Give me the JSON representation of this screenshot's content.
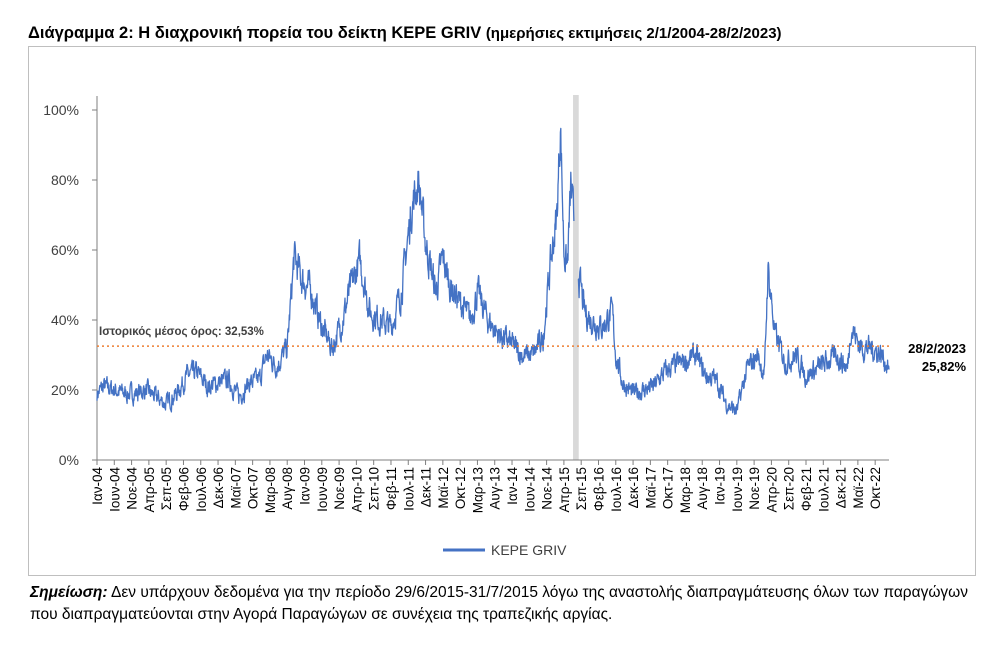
{
  "header": {
    "title": "Διάγραμμα 2: Η διαχρονική πορεία του δείκτη KEPE GRIV",
    "subtitle": "(ημερήσιες εκτιμήσεις 2/1/2004-28/2/2023)"
  },
  "note": {
    "lead": "Σημείωση:",
    "text": " Δεν υπάρχουν δεδομένα για την περίοδο 29/6/2015-31/7/2015 λόγω της αναστολής διαπραγμάτευσης όλων των παραγώγων που διαπραγματεύονται στην Αγορά Παραγώγων σε συνέχεια της τραπεζικής αργίας."
  },
  "colors": {
    "series": "#4472c4",
    "mean_line": "#ed7d31",
    "gap_band": "#d9d9d9"
  },
  "chart_data": {
    "type": "line",
    "title": "",
    "xlabel": "",
    "ylabel": "",
    "ylim": [
      0,
      1.0
    ],
    "yticks": [
      0,
      0.2,
      0.4,
      0.6,
      0.8,
      1.0
    ],
    "ytick_labels": [
      "0%",
      "20%",
      "40%",
      "60%",
      "80%",
      "100%"
    ],
    "grid": false,
    "legend_position": "bottom",
    "x_start": "2004-01",
    "x_end": "2023-02",
    "x_tick_labels": [
      "Ιαν-04",
      "Ιουν-04",
      "Νοε-04",
      "Απρ-05",
      "Σεπ-05",
      "Φεβ-06",
      "Ιουλ-06",
      "Δεκ-06",
      "Μαϊ-07",
      "Οκτ-07",
      "Μαρ-08",
      "Αυγ-08",
      "Ιαν-09",
      "Ιουν-09",
      "Νοε-09",
      "Απρ-10",
      "Σεπ-10",
      "Φεβ-11",
      "Ιουλ-11",
      "Δεκ-11",
      "Μαϊ-12",
      "Οκτ-12",
      "Μαρ-13",
      "Αυγ-13",
      "Ιαν-14",
      "Ιουν-14",
      "Νοε-14",
      "Απρ-15",
      "Σεπ-15",
      "Φεβ-16",
      "Ιουλ-16",
      "Δεκ-16",
      "Μαϊ-17",
      "Οκτ-17",
      "Μαρ-18",
      "Αυγ-18",
      "Ιαν-19",
      "Ιουν-19",
      "Νοε-19",
      "Απρ-20",
      "Σεπ-20",
      "Φεβ-21",
      "Ιουλ-21",
      "Δεκ-21",
      "Μαϊ-22",
      "Οκτ-22"
    ],
    "series": [
      {
        "name": "KEPE GRIV",
        "points": [
          [
            "2004-01",
            0.19
          ],
          [
            "2004-03",
            0.21
          ],
          [
            "2004-06",
            0.2
          ],
          [
            "2004-09",
            0.19
          ],
          [
            "2004-12",
            0.19
          ],
          [
            "2005-03",
            0.2
          ],
          [
            "2005-06",
            0.18
          ],
          [
            "2005-09",
            0.16
          ],
          [
            "2005-12",
            0.19
          ],
          [
            "2006-03",
            0.24
          ],
          [
            "2006-06",
            0.25
          ],
          [
            "2006-09",
            0.21
          ],
          [
            "2006-12",
            0.22
          ],
          [
            "2007-03",
            0.23
          ],
          [
            "2007-06",
            0.18
          ],
          [
            "2007-09",
            0.22
          ],
          [
            "2007-12",
            0.23
          ],
          [
            "2008-02",
            0.3
          ],
          [
            "2008-05",
            0.27
          ],
          [
            "2008-08",
            0.32
          ],
          [
            "2008-10",
            0.58
          ],
          [
            "2008-12",
            0.52
          ],
          [
            "2009-03",
            0.48
          ],
          [
            "2009-06",
            0.38
          ],
          [
            "2009-09",
            0.32
          ],
          [
            "2009-12",
            0.4
          ],
          [
            "2010-02",
            0.48
          ],
          [
            "2010-05",
            0.57
          ],
          [
            "2010-08",
            0.42
          ],
          [
            "2010-11",
            0.4
          ],
          [
            "2011-02",
            0.38
          ],
          [
            "2011-05",
            0.48
          ],
          [
            "2011-08",
            0.72
          ],
          [
            "2011-10",
            0.8
          ],
          [
            "2011-12",
            0.62
          ],
          [
            "2012-03",
            0.48
          ],
          [
            "2012-05",
            0.58
          ],
          [
            "2012-07",
            0.5
          ],
          [
            "2012-10",
            0.45
          ],
          [
            "2013-01",
            0.4
          ],
          [
            "2013-03",
            0.48
          ],
          [
            "2013-06",
            0.4
          ],
          [
            "2013-09",
            0.36
          ],
          [
            "2014-01",
            0.33
          ],
          [
            "2014-04",
            0.3
          ],
          [
            "2014-07",
            0.3
          ],
          [
            "2014-10",
            0.35
          ],
          [
            "2014-12",
            0.55
          ],
          [
            "2015-02",
            0.7
          ],
          [
            "2015-03",
            0.96
          ],
          [
            "2015-04",
            0.6
          ],
          [
            "2015-05",
            0.55
          ],
          [
            "2015-06",
            0.78
          ],
          [
            "2015-08",
            0.55
          ],
          [
            "2015-10",
            0.42
          ],
          [
            "2015-12",
            0.4
          ],
          [
            "2016-03",
            0.38
          ],
          [
            "2016-06",
            0.42
          ],
          [
            "2016-07",
            0.3
          ],
          [
            "2016-09",
            0.22
          ],
          [
            "2016-12",
            0.19
          ],
          [
            "2017-03",
            0.2
          ],
          [
            "2017-06",
            0.21
          ],
          [
            "2017-09",
            0.25
          ],
          [
            "2017-12",
            0.27
          ],
          [
            "2018-03",
            0.28
          ],
          [
            "2018-06",
            0.3
          ],
          [
            "2018-09",
            0.24
          ],
          [
            "2018-12",
            0.23
          ],
          [
            "2019-03",
            0.16
          ],
          [
            "2019-06",
            0.14
          ],
          [
            "2019-09",
            0.26
          ],
          [
            "2019-12",
            0.3
          ],
          [
            "2020-02",
            0.24
          ],
          [
            "2020-03",
            0.55
          ],
          [
            "2020-05",
            0.36
          ],
          [
            "2020-08",
            0.28
          ],
          [
            "2020-11",
            0.3
          ],
          [
            "2021-02",
            0.24
          ],
          [
            "2021-05",
            0.26
          ],
          [
            "2021-08",
            0.28
          ],
          [
            "2021-11",
            0.3
          ],
          [
            "2022-02",
            0.26
          ],
          [
            "2022-03",
            0.38
          ],
          [
            "2022-06",
            0.32
          ],
          [
            "2022-09",
            0.32
          ],
          [
            "2022-12",
            0.3
          ],
          [
            "2023-02",
            0.2582
          ]
        ]
      }
    ],
    "reference_line": {
      "value": 0.3253,
      "label": "Ιστορικός μέσος όρος: 32,53%"
    },
    "gap_band": {
      "from": "2015-06-29",
      "to": "2015-07-31"
    },
    "annotations": [
      {
        "text": "28/2/2023"
      },
      {
        "text": "25,82%"
      }
    ]
  }
}
